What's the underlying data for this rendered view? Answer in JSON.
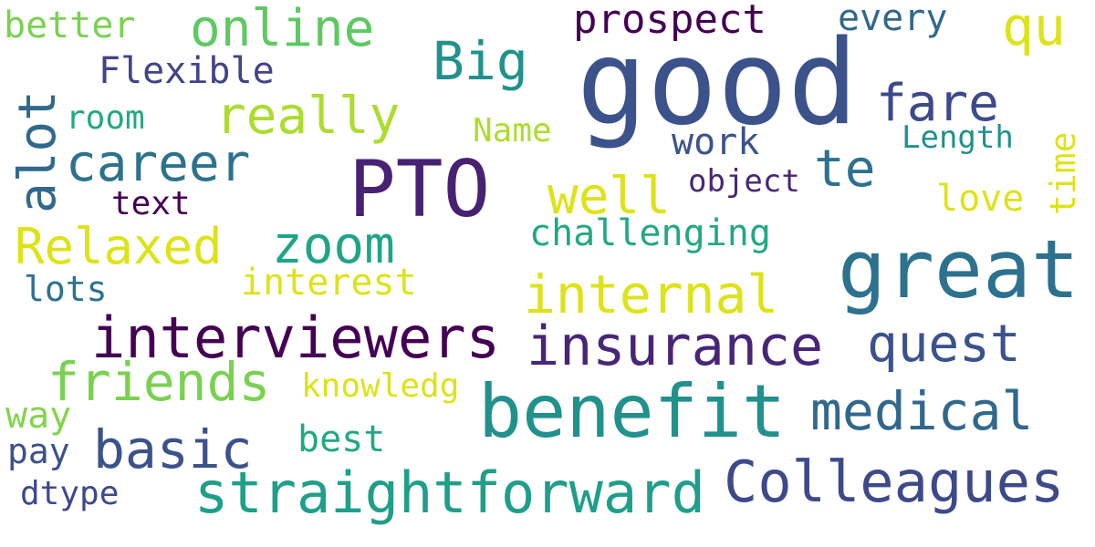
{
  "words": {
    "good": "good",
    "pto": "PTO",
    "great": "great",
    "benefit": "benefit",
    "straightforward": "straightforward",
    "interviewers": "interviewers",
    "insurance": "insurance",
    "colleagues": "Colleagues",
    "internal": "internal",
    "medical": "medical",
    "quest": "quest",
    "friends": "friends",
    "basic": "basic",
    "career": "career",
    "relaxed": "Relaxed",
    "zoom": "zoom",
    "really": "really",
    "online": "online",
    "well": "well",
    "alot": "alot",
    "fare": "fare",
    "big": "Big",
    "prospect": "prospect",
    "te": "te",
    "qu": "qu",
    "flexible": "Flexible",
    "challenging": "challenging",
    "interest": "interest",
    "better": "better",
    "every": "every",
    "work": "work",
    "knowledg": "knowledg",
    "best": "best",
    "love": "love",
    "time": "time",
    "length": "Length",
    "name": "Name",
    "object": "object",
    "room": "room",
    "text": "text",
    "lots": "lots",
    "way": "way",
    "pay": "pay",
    "dtype": "dtype"
  },
  "colors": {
    "dark_purple": "#440154",
    "indigo": "#3b528b",
    "teal_blue": "#2c728e",
    "teal": "#21918c",
    "green_teal": "#28ae80",
    "green": "#5ec962",
    "lime": "#addc30",
    "yellow": "#dde318"
  }
}
